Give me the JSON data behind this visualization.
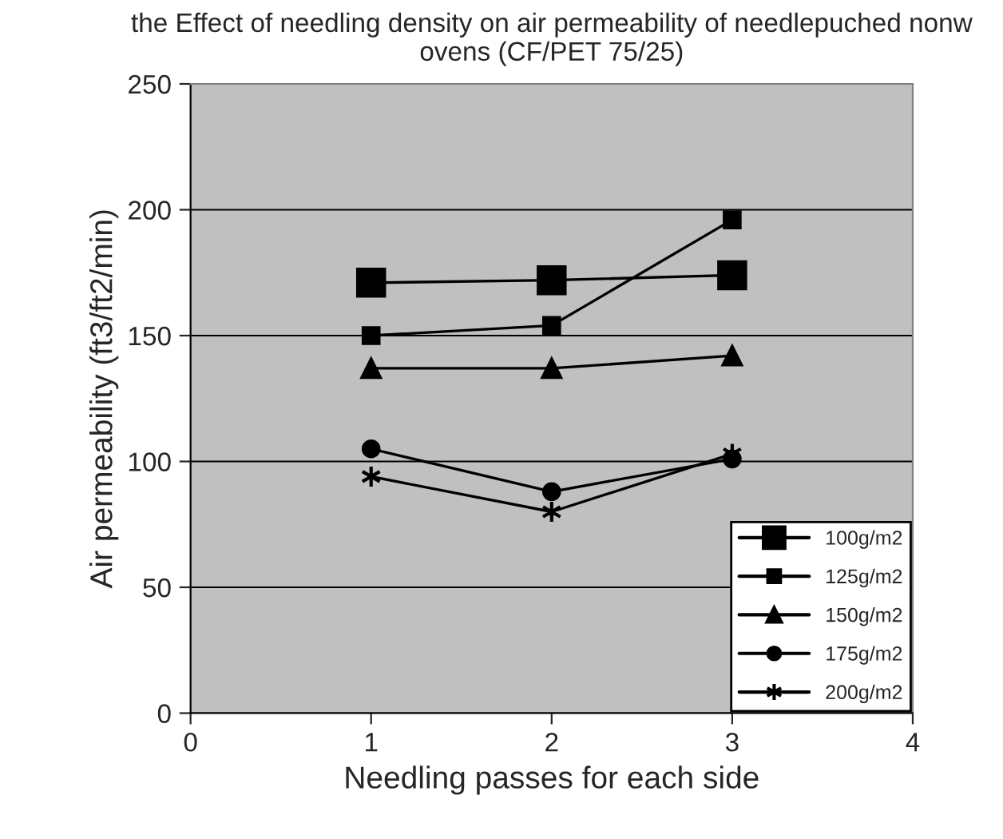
{
  "chart_data": {
    "type": "line",
    "title": "the Effect of needling density on air permeability of needlepuched nonw ovens (CF/PET 75/25)",
    "xlabel": "Needling passes for each side",
    "ylabel": "Air permeability (ft3/ft2/min)",
    "x": [
      1,
      2,
      3
    ],
    "series": [
      {
        "name": "100g/m2",
        "color": "#000000",
        "marker": "square",
        "values": [
          171,
          172,
          174
        ]
      },
      {
        "name": "125g/m2",
        "color": "#000000",
        "marker": "square",
        "values": [
          150,
          154,
          196
        ]
      },
      {
        "name": "150g/m2",
        "color": "#000000",
        "marker": "triangle",
        "values": [
          137,
          137,
          142
        ]
      },
      {
        "name": "175g/m2",
        "color": "#000000",
        "marker": "circle",
        "values": [
          105,
          88,
          101
        ]
      },
      {
        "name": "200g/m2",
        "color": "#000000",
        "marker": "cross",
        "values": [
          94,
          80,
          103
        ]
      }
    ],
    "xlim": [
      0,
      4
    ],
    "xticks": [
      0,
      1,
      2,
      3,
      4
    ],
    "ylim": [
      0,
      250
    ],
    "yticks": [
      0,
      50,
      100,
      150,
      200,
      250
    ],
    "grid": "y",
    "legend": "bottom right",
    "line_style": "solid"
  }
}
